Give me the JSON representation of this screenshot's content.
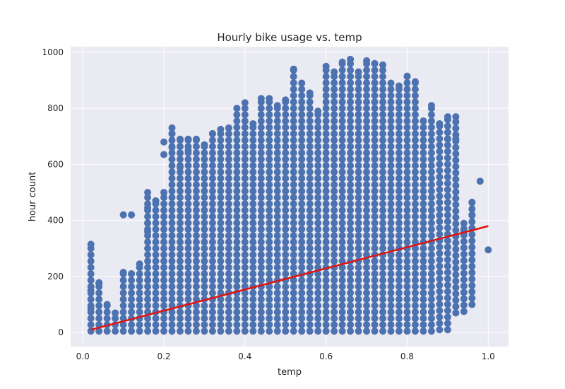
{
  "chart_data": {
    "type": "scatter",
    "title": "Hourly bike usage vs. temp",
    "xlabel": "temp",
    "ylabel": "hour count",
    "xlim": [
      -0.03,
      1.05
    ],
    "ylim": [
      -50,
      1020
    ],
    "xticks": [
      "0.0",
      "0.2",
      "0.4",
      "0.6",
      "0.8",
      "1.0"
    ],
    "yticks": [
      "0",
      "200",
      "400",
      "600",
      "800",
      "1000"
    ],
    "grid": true,
    "x_values": [
      0.02,
      0.04,
      0.06,
      0.08,
      0.1,
      0.12,
      0.14,
      0.16,
      0.18,
      0.2,
      0.22,
      0.24,
      0.26,
      0.28,
      0.3,
      0.32,
      0.34,
      0.36,
      0.38,
      0.4,
      0.42,
      0.44,
      0.46,
      0.48,
      0.5,
      0.52,
      0.54,
      0.56,
      0.58,
      0.6,
      0.62,
      0.64,
      0.66,
      0.68,
      0.7,
      0.72,
      0.74,
      0.76,
      0.78,
      0.8,
      0.82,
      0.84,
      0.86,
      0.88,
      0.9,
      0.92,
      0.94,
      0.96,
      0.98,
      1.0
    ],
    "y_min": [
      5,
      5,
      5,
      5,
      5,
      5,
      5,
      5,
      5,
      5,
      5,
      5,
      5,
      5,
      5,
      5,
      5,
      5,
      5,
      5,
      5,
      5,
      5,
      5,
      5,
      5,
      5,
      5,
      5,
      5,
      5,
      5,
      5,
      5,
      5,
      5,
      5,
      5,
      5,
      5,
      5,
      5,
      5,
      10,
      10,
      70,
      75,
      100,
      540,
      295
    ],
    "y_max": [
      315,
      178,
      100,
      70,
      215,
      210,
      245,
      500,
      470,
      500,
      730,
      690,
      690,
      690,
      670,
      710,
      725,
      730,
      800,
      820,
      745,
      835,
      835,
      810,
      830,
      940,
      890,
      855,
      790,
      950,
      930,
      965,
      975,
      930,
      970,
      960,
      955,
      890,
      880,
      915,
      895,
      755,
      810,
      745,
      770,
      770,
      390,
      465,
      540,
      295
    ],
    "outliers": [
      [
        0.02,
        150
      ],
      [
        0.02,
        85
      ],
      [
        0.04,
        175
      ],
      [
        0.1,
        420
      ],
      [
        0.12,
        420
      ],
      [
        0.16,
        360
      ],
      [
        0.16,
        390
      ],
      [
        0.16,
        445
      ],
      [
        0.18,
        470
      ],
      [
        0.2,
        635
      ],
      [
        0.2,
        680
      ],
      [
        0.22,
        710
      ],
      [
        0.22,
        660
      ],
      [
        0.24,
        590
      ],
      [
        0.24,
        640
      ],
      [
        0.26,
        650
      ],
      [
        0.9,
        690
      ],
      [
        0.92,
        690
      ],
      [
        0.94,
        360
      ],
      [
        0.96,
        420
      ]
    ],
    "regression_line": {
      "x": [
        0.02,
        1.0
      ],
      "y": [
        10,
        380
      ],
      "color": "#e3120b"
    },
    "colors": {
      "points": "#4c72b0",
      "background": "#eaeaf2",
      "grid": "#ffffff",
      "line": "#e3120b"
    }
  }
}
